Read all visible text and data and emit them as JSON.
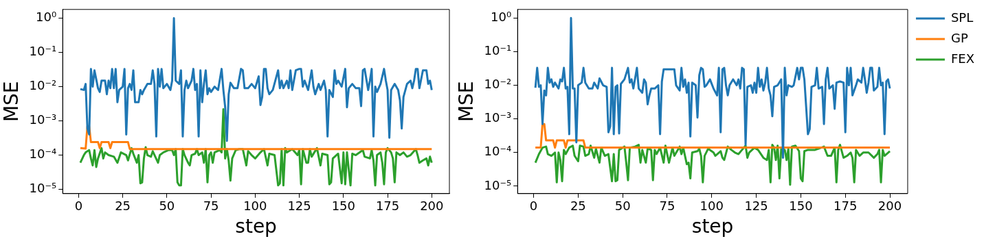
{
  "chart_data": [
    {
      "type": "line",
      "xlabel": "step",
      "ylabel": "MSE",
      "log": "y",
      "grid": false,
      "legend": false,
      "marker": "none",
      "line_style": "solid",
      "xlim": [
        -9,
        210
      ],
      "xticks": [
        0,
        25,
        50,
        75,
        100,
        125,
        150,
        175,
        200
      ],
      "ylim": [
        7.5e-06,
        1.8
      ],
      "yticks": [
        {
          "value": 1e-05,
          "label": "10⁻⁵"
        },
        {
          "value": 0.0001,
          "label": "10⁻⁴"
        },
        {
          "value": 0.001,
          "label": "10⁻³"
        },
        {
          "value": 0.01,
          "label": "10⁻²"
        },
        {
          "value": 0.1,
          "label": "10⁻¹"
        },
        {
          "value": 1,
          "label": "10⁰"
        }
      ],
      "series": [
        {
          "color": "#1f77b4",
          "x": [
            1,
            3,
            4,
            5,
            6,
            7,
            8,
            9,
            11,
            12,
            13,
            15,
            16,
            17,
            18,
            19,
            20,
            21,
            22,
            23,
            25,
            26,
            27,
            28,
            29,
            30,
            31,
            32,
            34,
            35,
            36,
            37,
            39,
            41,
            42,
            43,
            44,
            45,
            46,
            47,
            48,
            50,
            52,
            53,
            54,
            55,
            57,
            58,
            59,
            60,
            61,
            62,
            64,
            65,
            66,
            67,
            68,
            69,
            70,
            71,
            72,
            73,
            74,
            75,
            77,
            79,
            81,
            82,
            83,
            84,
            85,
            86,
            88,
            90,
            92,
            93,
            94,
            96,
            98,
            100,
            102,
            103,
            104,
            105,
            106,
            107,
            108,
            110,
            113,
            114,
            115,
            116,
            118,
            119,
            120,
            121,
            123,
            125,
            126,
            127,
            128,
            130,
            132,
            133,
            134,
            136,
            137,
            139,
            140,
            141,
            142,
            144,
            145,
            146,
            147,
            149,
            151,
            152,
            153,
            155,
            157,
            159,
            160,
            161,
            162,
            164,
            165,
            166,
            167,
            168,
            169,
            171,
            173,
            174,
            175,
            176,
            177,
            179,
            181,
            182,
            183,
            184,
            186,
            188,
            189,
            190,
            191,
            192,
            193,
            195,
            197,
            198,
            199,
            200
          ],
          "values": [
            0.0085,
            0.008,
            0.012,
            0.0006,
            0.0004,
            0.033,
            0.01,
            0.03,
            0.009,
            0.007,
            0.015,
            0.015,
            0.006,
            0.015,
            0.009,
            0.033,
            0.009,
            0.033,
            0.0035,
            0.008,
            0.01,
            0.033,
            0.0004,
            0.009,
            0.012,
            0.008,
            0.03,
            0.0035,
            0.0035,
            0.008,
            0.006,
            0.008,
            0.012,
            0.012,
            0.03,
            0.012,
            0.00035,
            0.033,
            0.01,
            0.033,
            0.009,
            0.012,
            0.008,
            0.015,
            1.0,
            0.015,
            0.012,
            0.03,
            0.00035,
            0.008,
            0.015,
            0.009,
            0.015,
            0.033,
            0.008,
            0.012,
            0.00035,
            0.03,
            0.0035,
            0.012,
            0.03,
            0.006,
            0.009,
            0.007,
            0.01,
            0.008,
            0.033,
            0.008,
            0.0026,
            0.00026,
            0.006,
            0.013,
            0.009,
            0.009,
            0.033,
            0.03,
            0.009,
            0.009,
            0.012,
            0.009,
            0.02,
            0.0029,
            0.005,
            0.033,
            0.033,
            0.009,
            0.006,
            0.008,
            0.03,
            0.009,
            0.015,
            0.009,
            0.015,
            0.009,
            0.03,
            0.008,
            0.03,
            0.033,
            0.033,
            0.01,
            0.015,
            0.008,
            0.03,
            0.01,
            0.006,
            0.012,
            0.008,
            0.015,
            0.008,
            0.00035,
            0.008,
            0.005,
            0.03,
            0.012,
            0.015,
            0.01,
            0.033,
            0.0025,
            0.009,
            0.012,
            0.009,
            0.009,
            0.0027,
            0.03,
            0.033,
            0.008,
            0.015,
            0.033,
            0.00035,
            0.01,
            0.007,
            0.012,
            0.033,
            0.015,
            0.008,
            0.00032,
            0.008,
            0.012,
            0.008,
            0.004,
            0.0006,
            0.005,
            0.012,
            0.015,
            0.009,
            0.015,
            0.033,
            0.033,
            0.009,
            0.03,
            0.03,
            0.012,
            0.015,
            0.008
          ]
        },
        {
          "color": "#ff7f0e",
          "x": [
            1,
            4,
            5,
            6,
            7,
            11,
            12,
            13,
            17,
            18,
            19,
            28,
            29,
            200
          ],
          "values": [
            0.00016,
            0.000155,
            0.0007,
            0.0007,
            0.00024,
            0.00024,
            0.00016,
            0.00024,
            0.00024,
            0.00016,
            0.00024,
            0.00024,
            0.00015,
            0.00015
          ]
        },
        {
          "color": "#2ca02c",
          "x": [
            1,
            3,
            4,
            6,
            7,
            8,
            9,
            10,
            11,
            13,
            14,
            15,
            17,
            20,
            22,
            24,
            27,
            28,
            30,
            31,
            33,
            34,
            35,
            36,
            37,
            38,
            39,
            41,
            42,
            45,
            46,
            48,
            51,
            53,
            54,
            55,
            56,
            57,
            58,
            59,
            60,
            62,
            63,
            64,
            66,
            67,
            68,
            70,
            71,
            72,
            73,
            74,
            75,
            76,
            77,
            80,
            81,
            82,
            83,
            84,
            85,
            86,
            87,
            89,
            91,
            93,
            95,
            96,
            98,
            100,
            103,
            105,
            107,
            108,
            111,
            113,
            114,
            115,
            116,
            117,
            118,
            121,
            124,
            125,
            126,
            127,
            129,
            130,
            131,
            132,
            135,
            137,
            138,
            141,
            142,
            143,
            144,
            147,
            149,
            150,
            151,
            152,
            154,
            155,
            157,
            161,
            162,
            165,
            166,
            167,
            168,
            169,
            171,
            172,
            173,
            174,
            175,
            177,
            178,
            179,
            180,
            182,
            184,
            186,
            188,
            191,
            192,
            193,
            195,
            197,
            198,
            199,
            200
          ],
          "values": [
            6e-05,
            0.0001,
            0.00012,
            0.00014,
            8e-05,
            5e-05,
            0.00014,
            4.5e-05,
            8e-05,
            0.00016,
            8e-05,
            0.00012,
            0.0001,
            9e-05,
            6e-05,
            0.00012,
            0.0001,
            7e-05,
            0.00016,
            0.00011,
            6e-05,
            0.0001,
            1.5e-05,
            1.6e-05,
            8e-05,
            0.00017,
            0.0001,
            9e-05,
            0.00013,
            6e-05,
            0.0001,
            0.00012,
            0.00014,
            0.00014,
            0.0001,
            0.00015,
            1.6e-05,
            1.3e-05,
            1.3e-05,
            0.00015,
            0.0001,
            6e-05,
            5e-05,
            0.0001,
            0.00011,
            0.00015,
            0.0001,
            0.00012,
            6e-05,
            0.00015,
            1.6e-05,
            0.0001,
            0.00012,
            6e-05,
            0.00012,
            0.00014,
            0.00012,
            0.0022,
            8e-05,
            0.00015,
            7e-05,
            1.8e-05,
            8e-05,
            0.00014,
            0.00015,
            0.00015,
            5e-05,
            0.00013,
            0.0001,
            8e-05,
            0.00012,
            0.00015,
            5e-05,
            0.00011,
            0.0001,
            1.3e-05,
            1.5e-05,
            0.00015,
            1.3e-05,
            0.00016,
            0.00012,
            0.00015,
            0.0001,
            0.00014,
            1.4e-05,
            0.00015,
            6e-05,
            6e-05,
            0.00015,
            9e-05,
            0.00016,
            5e-05,
            0.00011,
            0.0001,
            1.4e-05,
            1.6e-05,
            8e-05,
            0.00011,
            1.5e-05,
            0.00012,
            1.4e-05,
            0.00012,
            1.3e-05,
            0.00011,
            0.0001,
            0.00014,
            9e-05,
            8e-05,
            0.00014,
            7e-05,
            1.3e-05,
            0.0001,
            0.00012,
            6e-05,
            1.4e-05,
            0.00012,
            0.00016,
            0.00012,
            8e-05,
            1.6e-05,
            0.00012,
            0.0001,
            0.00012,
            9e-05,
            0.0001,
            0.00015,
            0.0001,
            6e-05,
            7e-05,
            8e-05,
            5e-05,
            9e-05,
            6e-05
          ]
        }
      ]
    },
    {
      "type": "line",
      "xlabel": "step",
      "ylabel": "MSE",
      "log": "y",
      "grid": false,
      "legend": "right",
      "marker": "none",
      "line_style": "solid",
      "xlim": [
        -9,
        210
      ],
      "xticks": [
        0,
        25,
        50,
        75,
        100,
        125,
        150,
        175,
        200
      ],
      "ylim": [
        6e-06,
        1.8
      ],
      "yticks": [
        {
          "value": 1e-05,
          "label": "10⁻⁵"
        },
        {
          "value": 0.0001,
          "label": "10⁻⁴"
        },
        {
          "value": 0.001,
          "label": "10⁻³"
        },
        {
          "value": 0.01,
          "label": "10⁻²"
        },
        {
          "value": 0.1,
          "label": "10⁻¹"
        },
        {
          "value": 1,
          "label": "10⁰"
        }
      ],
      "series": [
        {
          "name": "SPL",
          "color": "#1f77b4",
          "x": [
            1,
            2,
            3,
            4,
            5,
            6,
            7,
            8,
            9,
            10,
            11,
            12,
            14,
            15,
            16,
            17,
            18,
            19,
            20,
            21,
            22,
            23,
            24,
            25,
            27,
            28,
            29,
            31,
            33,
            34,
            36,
            37,
            39,
            41,
            42,
            43,
            44,
            45,
            46,
            47,
            48,
            49,
            51,
            53,
            54,
            55,
            56,
            58,
            59,
            61,
            62,
            63,
            64,
            65,
            66,
            68,
            70,
            71,
            72,
            73,
            79,
            80,
            82,
            83,
            84,
            85,
            86,
            87,
            88,
            89,
            91,
            92,
            93,
            94,
            95,
            96,
            97,
            99,
            101,
            103,
            104,
            105,
            106,
            107,
            108,
            109,
            110,
            112,
            114,
            115,
            116,
            117,
            118,
            119,
            120,
            122,
            123,
            124,
            125,
            126,
            127,
            128,
            129,
            130,
            131,
            132,
            133,
            134,
            135,
            137,
            139,
            140,
            141,
            142,
            143,
            145,
            146,
            148,
            149,
            150,
            151,
            152,
            154,
            155,
            156,
            158,
            159,
            160,
            162,
            163,
            164,
            165,
            166,
            168,
            169,
            170,
            172,
            174,
            175,
            176,
            177,
            178,
            179,
            181,
            182,
            184,
            185,
            186,
            187,
            188,
            189,
            190,
            191,
            193,
            194,
            195,
            196,
            197,
            198,
            199,
            200
          ],
          "values": [
            0.0085,
            0.033,
            0.009,
            0.01,
            0.0007,
            0.007,
            0.005,
            0.033,
            0.012,
            0.015,
            0.009,
            0.012,
            0.008,
            0.015,
            0.013,
            0.033,
            0.008,
            0.009,
            0.00035,
            1.0,
            0.008,
            0.008,
            0.0002,
            0.01,
            0.012,
            0.033,
            0.012,
            0.008,
            0.008,
            0.012,
            0.008,
            0.016,
            0.01,
            0.009,
            0.0004,
            0.0006,
            0.033,
            0.00035,
            0.009,
            0.01,
            0.00037,
            0.011,
            0.015,
            0.033,
            0.012,
            0.015,
            0.008,
            0.033,
            0.008,
            0.006,
            0.015,
            0.012,
            0.0027,
            0.005,
            0.008,
            0.008,
            0.01,
            0.00035,
            0.013,
            0.03,
            0.03,
            0.01,
            0.007,
            0.033,
            0.009,
            0.015,
            0.006,
            0.012,
            0.0003,
            0.012,
            0.01,
            0.0011,
            0.02,
            0.033,
            0.03,
            0.009,
            0.01,
            0.015,
            0.008,
            0.005,
            0.033,
            0.0004,
            0.03,
            0.033,
            0.01,
            0.005,
            0.01,
            0.015,
            0.01,
            0.015,
            0.008,
            0.033,
            0.03,
            0.00017,
            0.009,
            0.01,
            0.006,
            0.012,
            0.006,
            0.033,
            0.009,
            0.015,
            0.007,
            0.012,
            0.033,
            0.008,
            0.005,
            0.0012,
            0.009,
            0.01,
            0.015,
            7e-05,
            0.033,
            0.005,
            0.01,
            0.009,
            0.01,
            0.033,
            0.015,
            0.033,
            0.033,
            0.015,
            0.00035,
            0.0005,
            0.009,
            0.01,
            0.033,
            0.008,
            0.009,
            0.0007,
            0.015,
            0.033,
            0.008,
            0.01,
            0.002,
            0.012,
            0.013,
            0.012,
            0.0004,
            0.033,
            0.01,
            0.033,
            0.005,
            0.01,
            0.015,
            0.012,
            0.033,
            0.015,
            0.006,
            0.012,
            0.033,
            0.033,
            0.007,
            0.009,
            0.033,
            0.01,
            0.012,
            0.00035,
            0.013,
            0.015,
            0.008
          ]
        },
        {
          "name": "GP",
          "color": "#ff7f0e",
          "x": [
            1,
            4,
            5,
            6,
            7,
            11,
            12,
            13,
            17,
            18,
            19,
            28,
            29,
            200
          ],
          "values": [
            0.00014,
            0.00014,
            0.0007,
            0.0007,
            0.00023,
            0.00023,
            0.00014,
            0.00023,
            0.00023,
            0.00014,
            0.00023,
            0.00023,
            0.00014,
            0.00014
          ]
        },
        {
          "name": "FEX",
          "color": "#2ca02c",
          "x": [
            1,
            3,
            5,
            7,
            8,
            10,
            12,
            13,
            14,
            15,
            16,
            17,
            18,
            20,
            22,
            23,
            25,
            26,
            28,
            29,
            31,
            32,
            34,
            35,
            37,
            38,
            40,
            42,
            44,
            45,
            46,
            47,
            48,
            51,
            52,
            53,
            54,
            57,
            59,
            60,
            61,
            63,
            64,
            66,
            67,
            68,
            69,
            71,
            73,
            74,
            76,
            78,
            79,
            82,
            83,
            84,
            86,
            87,
            88,
            89,
            92,
            93,
            94,
            95,
            96,
            98,
            101,
            102,
            105,
            106,
            107,
            109,
            111,
            113,
            115,
            117,
            119,
            120,
            121,
            124,
            126,
            129,
            131,
            132,
            133,
            134,
            135,
            136,
            137,
            138,
            139,
            141,
            142,
            143,
            144,
            145,
            147,
            149,
            150,
            151,
            152,
            154,
            158,
            160,
            163,
            165,
            167,
            169,
            170,
            171,
            172,
            174,
            176,
            178,
            179,
            180,
            181,
            183,
            185,
            188,
            191,
            193,
            194,
            195,
            196,
            197,
            200
          ],
          "values": [
            5e-05,
            9e-05,
            0.00014,
            0.00015,
            9e-05,
            8e-05,
            0.0001,
            1.3e-05,
            0.0001,
            6e-05,
            1.4e-05,
            0.00012,
            9e-05,
            0.00014,
            0.00016,
            8e-05,
            5.5e-05,
            0.00016,
            0.00015,
            8e-05,
            9e-05,
            0.00016,
            7e-05,
            0.00013,
            5e-05,
            0.00014,
            8e-05,
            9e-05,
            1.4e-05,
            9e-05,
            1.4e-05,
            1.5e-05,
            0.00012,
            0.00015,
            5e-05,
            1.5e-05,
            0.00014,
            0.00015,
            0.00017,
            5e-05,
            0.00012,
            5e-05,
            0.00013,
            0.00012,
            1.5e-05,
            0.00012,
            9e-05,
            0.00014,
            5e-05,
            0.00016,
            5e-05,
            0.00014,
            8e-05,
            0.00015,
            9e-05,
            0.00014,
            4.5e-05,
            5e-05,
            1.7e-05,
            0.0001,
            0.00011,
            0.00013,
            8e-05,
            1.3e-05,
            8e-05,
            0.00013,
            0.0001,
            8e-05,
            0.00011,
            7e-05,
            6e-05,
            0.00015,
            0.00012,
            0.0001,
            9e-05,
            0.00012,
            0.00016,
            7e-05,
            0.0001,
            0.00014,
            0.00012,
            7e-05,
            6e-05,
            0.00012,
            1.3e-05,
            0.00017,
            0.00014,
            6e-05,
            0.00016,
            1.7e-05,
            0.00013,
            0.00012,
            6e-05,
            0.00013,
            1.1e-05,
            0.00015,
            0.00016,
            0.00011,
            1.7e-05,
            1.4e-05,
            0.00011,
            0.00012,
            0.00012,
            0.00013,
            0.00015,
            8e-05,
            8e-05,
            0.00014,
            1.3e-05,
            0.00012,
            0.00017,
            7e-05,
            8e-05,
            0.0001,
            7e-05,
            1.3e-05,
            0.00012,
            8e-05,
            0.0001,
            0.0001,
            7e-05,
            9e-05,
            0.00012,
            1.3e-05,
            0.00012,
            8e-05,
            0.00011
          ]
        }
      ]
    }
  ]
}
